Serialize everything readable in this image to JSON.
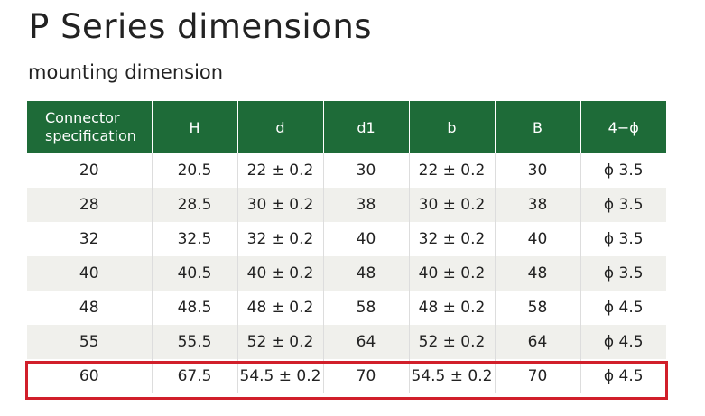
{
  "header": {
    "title": "P Series dimensions",
    "subtitle": "mounting dimension"
  },
  "table": {
    "columns": [
      "Connector specification",
      "H",
      "d",
      "d1",
      "b",
      "B",
      "4−ϕ"
    ],
    "rows": [
      [
        "20",
        "20.5",
        "22 ± 0.2",
        "30",
        "22 ± 0.2",
        "30",
        "ϕ 3.5"
      ],
      [
        "28",
        "28.5",
        "30 ± 0.2",
        "38",
        "30 ± 0.2",
        "38",
        "ϕ 3.5"
      ],
      [
        "32",
        "32.5",
        "32 ± 0.2",
        "40",
        "32 ± 0.2",
        "40",
        "ϕ 3.5"
      ],
      [
        "40",
        "40.5",
        "40 ± 0.2",
        "48",
        "40 ± 0.2",
        "48",
        "ϕ 3.5"
      ],
      [
        "48",
        "48.5",
        "48 ± 0.2",
        "58",
        "48 ± 0.2",
        "58",
        "ϕ 4.5"
      ],
      [
        "55",
        "55.5",
        "52 ± 0.2",
        "64",
        "52 ± 0.2",
        "64",
        "ϕ 4.5"
      ],
      [
        "60",
        "67.5",
        "54.5 ± 0.2",
        "70",
        "54.5 ± 0.2",
        "70",
        "ϕ 4.5"
      ]
    ]
  }
}
